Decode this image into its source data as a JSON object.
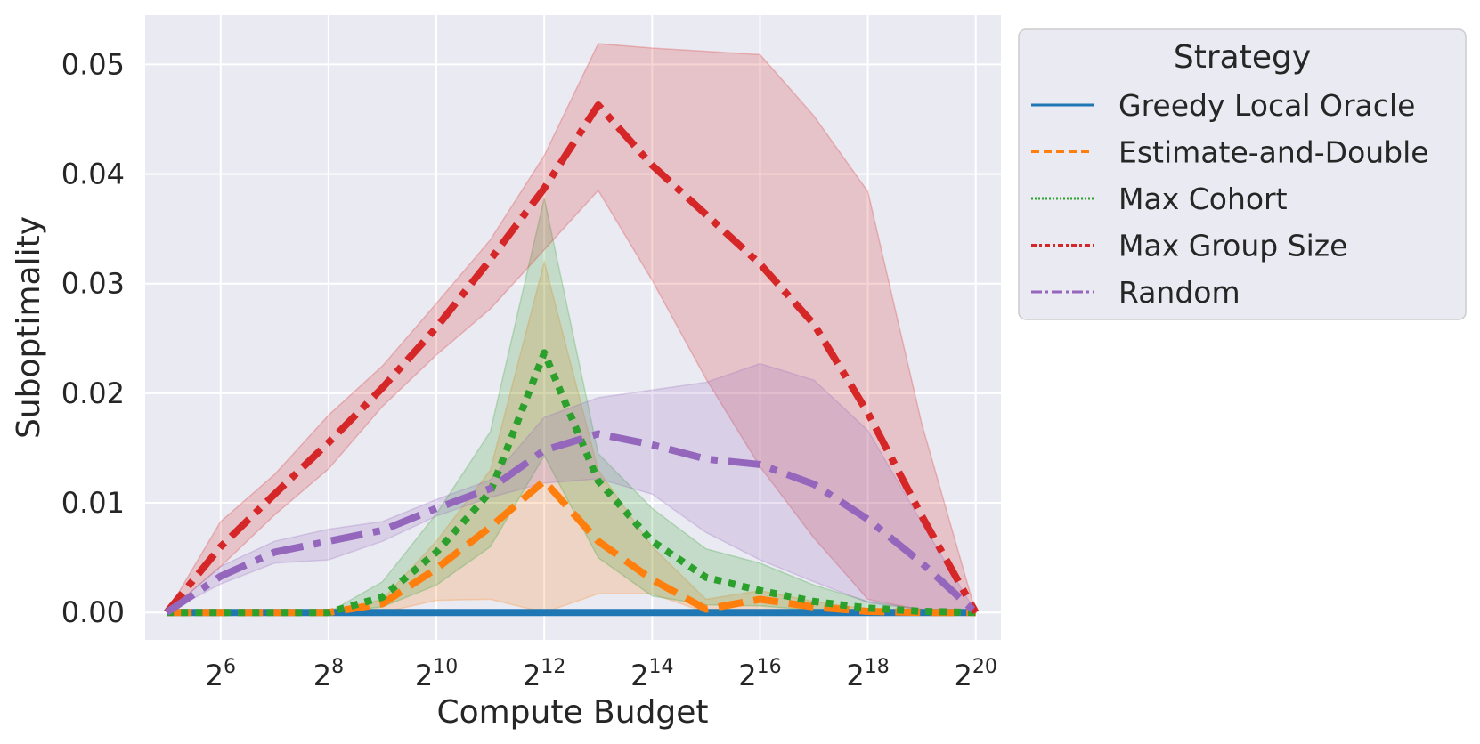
{
  "chart_data": {
    "type": "line",
    "xlabel": "Compute Budget",
    "ylabel": "Suboptimality",
    "x_scale": "log2",
    "xlim": [
      24.25,
      1449000
    ],
    "ylim": [
      -0.0025,
      0.0545
    ],
    "grid": true,
    "x_ticks": [
      {
        "value": 64,
        "base": "2",
        "exp": "6"
      },
      {
        "value": 256,
        "base": "2",
        "exp": "8"
      },
      {
        "value": 1024,
        "base": "2",
        "exp": "10"
      },
      {
        "value": 4096,
        "base": "2",
        "exp": "12"
      },
      {
        "value": 16384,
        "base": "2",
        "exp": "14"
      },
      {
        "value": 65536,
        "base": "2",
        "exp": "16"
      },
      {
        "value": 262144,
        "base": "2",
        "exp": "18"
      },
      {
        "value": 1048576,
        "base": "2",
        "exp": "20"
      }
    ],
    "y_ticks": [
      {
        "value": 0.0,
        "label": "0.00"
      },
      {
        "value": 0.01,
        "label": "0.01"
      },
      {
        "value": 0.02,
        "label": "0.02"
      },
      {
        "value": 0.03,
        "label": "0.03"
      },
      {
        "value": 0.04,
        "label": "0.04"
      },
      {
        "value": 0.05,
        "label": "0.05"
      }
    ],
    "x": [
      32,
      64,
      128,
      256,
      512,
      1024,
      2048,
      4096,
      8192,
      16384,
      32768,
      65536,
      131072,
      262144,
      524288,
      1048576
    ],
    "legend": {
      "title": "Strategy",
      "placement": "outside-right"
    },
    "series": [
      {
        "name": "Greedy Local Oracle",
        "color": "#1f77b4",
        "dash": "solid",
        "values": [
          0,
          0,
          0,
          0,
          0,
          0,
          0,
          0,
          0,
          0,
          0,
          0,
          0,
          0,
          0,
          0
        ],
        "lower": [
          0,
          0,
          0,
          0,
          0,
          0,
          0,
          0,
          0,
          0,
          0,
          0,
          0,
          0,
          0,
          0
        ],
        "upper": [
          0,
          0,
          0,
          0,
          0,
          0,
          0,
          0,
          0,
          0,
          0,
          0,
          0,
          0,
          0,
          0
        ]
      },
      {
        "name": "Estimate-and-Double",
        "color": "#ff7f0e",
        "dash": "dashed",
        "values": [
          0,
          0,
          0,
          0,
          0.0008,
          0.004,
          0.0078,
          0.012,
          0.0065,
          0.003,
          0.0003,
          0.0012,
          0.0005,
          0.0001,
          0,
          0
        ],
        "lower": [
          0,
          0,
          0,
          0,
          0,
          0.0011,
          0.0012,
          0,
          0.0017,
          0.0017,
          0,
          0,
          0,
          0,
          0,
          0
        ],
        "upper": [
          0,
          0,
          0,
          0,
          0.0012,
          0.0065,
          0.013,
          0.032,
          0.013,
          0.006,
          0.0012,
          0.002,
          0.001,
          0.0003,
          0,
          0
        ]
      },
      {
        "name": "Max Cohort",
        "color": "#2ca02c",
        "dash": "dotted",
        "values": [
          0,
          0,
          0,
          0,
          0.0014,
          0.0055,
          0.011,
          0.0237,
          0.012,
          0.0065,
          0.0032,
          0.002,
          0.001,
          0.0004,
          0.0001,
          0
        ],
        "lower": [
          0,
          0,
          0,
          0,
          0.0005,
          0.0025,
          0.006,
          0.0143,
          0.005,
          0.0015,
          0.0007,
          0.0006,
          0.0002,
          0.0001,
          0,
          0
        ],
        "upper": [
          0,
          0,
          0,
          0,
          0.0028,
          0.009,
          0.0165,
          0.0378,
          0.0145,
          0.0095,
          0.0058,
          0.0045,
          0.0025,
          0.001,
          0.0003,
          0
        ]
      },
      {
        "name": "Max Group Size",
        "color": "#d62728",
        "dash": "dashdot2",
        "values": [
          0,
          0.006,
          0.0108,
          0.0155,
          0.0205,
          0.026,
          0.0322,
          0.0387,
          0.0463,
          0.0408,
          0.0363,
          0.0318,
          0.0263,
          0.0182,
          0.0088,
          0
        ],
        "lower": [
          0,
          0.0042,
          0.0089,
          0.0131,
          0.0188,
          0.0235,
          0.0277,
          0.0331,
          0.0385,
          0.0303,
          0.0213,
          0.0133,
          0.0068,
          0.0012,
          0.0002,
          0
        ],
        "upper": [
          0,
          0.0083,
          0.0126,
          0.018,
          0.0225,
          0.0282,
          0.034,
          0.0417,
          0.0519,
          0.0515,
          0.0512,
          0.0509,
          0.0453,
          0.0384,
          0.0172,
          0
        ]
      },
      {
        "name": "Random",
        "color": "#9467bd",
        "dash": "dashdot",
        "values": [
          0,
          0.0033,
          0.0055,
          0.0065,
          0.0075,
          0.0095,
          0.0113,
          0.0148,
          0.0163,
          0.0153,
          0.014,
          0.0135,
          0.0117,
          0.0085,
          0.0045,
          0
        ],
        "lower": [
          0,
          0.0026,
          0.0045,
          0.0048,
          0.0065,
          0.0088,
          0.0105,
          0.0118,
          0.0122,
          0.0108,
          0.0073,
          0.0048,
          0.0028,
          0.0009,
          0.0002,
          0
        ],
        "upper": [
          0,
          0.0042,
          0.0065,
          0.0076,
          0.0083,
          0.0103,
          0.0121,
          0.0178,
          0.0196,
          0.0203,
          0.021,
          0.0227,
          0.0212,
          0.0166,
          0.0082,
          0
        ]
      }
    ]
  }
}
